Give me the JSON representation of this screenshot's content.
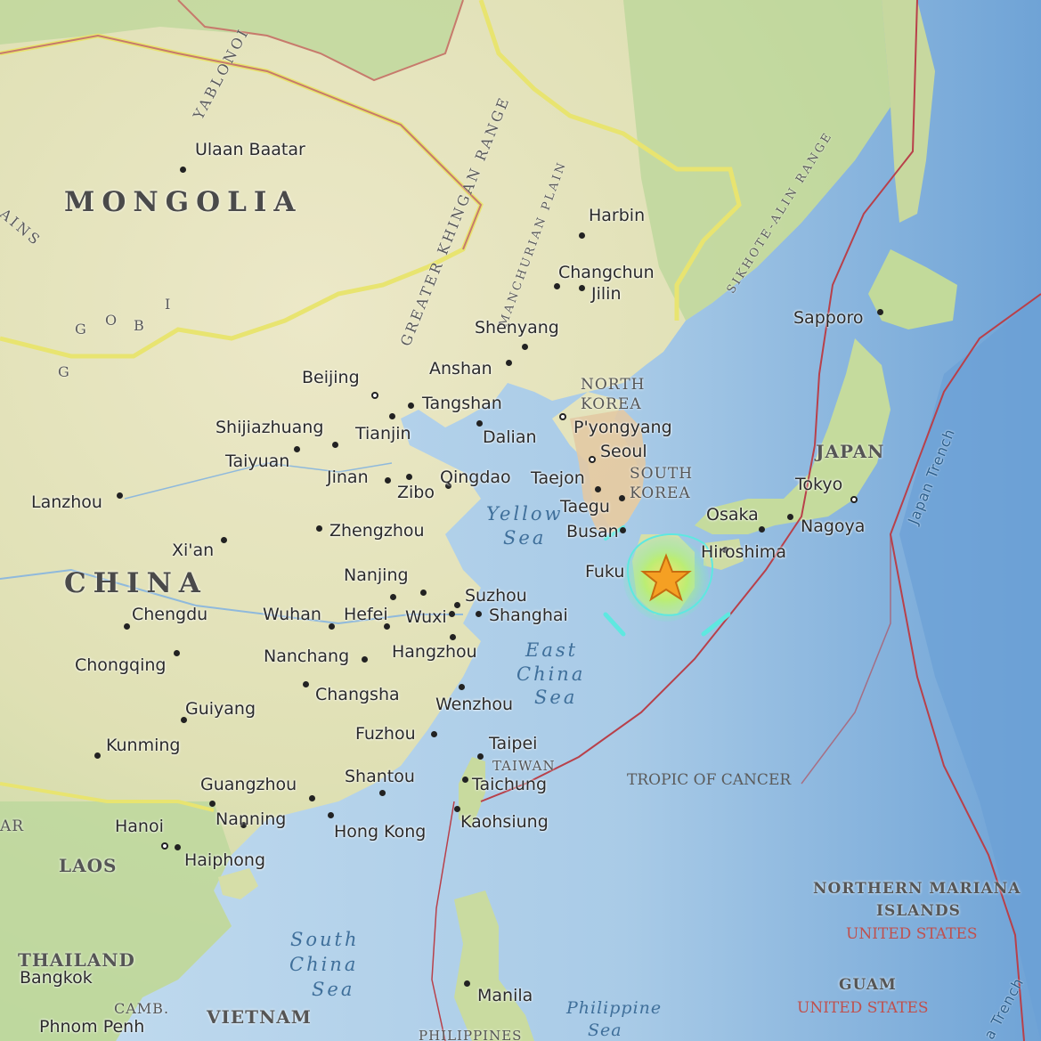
{
  "colors": {
    "ocean_shallow": "#bcd9ee",
    "ocean_deep": "#7fb0dc",
    "land": "#e8e6c2",
    "land_green": "#c9dca0",
    "border_yellow": "#e6e06a",
    "border_red": "#c77a6c",
    "plate_boundary": "#b8404a",
    "star": "#f5a023",
    "intensity_green": "#8ff08a",
    "intensity_cyan": "#5ee8e0"
  },
  "map": {
    "countries": {
      "mongolia": "MONGOLIA",
      "china": "CHINA",
      "north_korea_1": "NORTH",
      "north_korea_2": "KOREA",
      "south_korea_1": "SOUTH",
      "south_korea_2": "KOREA",
      "japan": "JAPAN",
      "taiwan": "TAIWAN",
      "laos": "LAOS",
      "thailand": "THAILAND",
      "cambodia": "CAMB.",
      "vietnam": "VIETNAM",
      "nmi_1": "NORTHERN MARIANA",
      "nmi_2": "ISLANDS",
      "nmi_us": "UNITED STATES",
      "guam": "GUAM",
      "guam_us": "UNITED STATES",
      "philippines": "PHILIPPINES",
      "myanmar": "AR"
    },
    "cities": {
      "ulaanbaatar": "Ulaan Baatar",
      "harbin": "Harbin",
      "changchun": "Changchun",
      "jilin": "Jilin",
      "shenyang": "Shenyang",
      "anshan": "Anshan",
      "beijing": "Beijing",
      "tangshan": "Tangshan",
      "shijiazhuang": "Shijiazhuang",
      "tianjin": "Tianjin",
      "dalian": "Dalian",
      "pyongyang": "P'yongyang",
      "taiyuan": "Taiyuan",
      "seoul": "Seoul",
      "jinan": "Jinan",
      "zibo": "Zibo",
      "qingdao": "Qingdao",
      "taejon": "Taejon",
      "taegu": "Taegu",
      "busan": "Busan",
      "lanzhou": "Lanzhou",
      "zhengzhou": "Zhengzhou",
      "xian": "Xi'an",
      "nanjing": "Nanjing",
      "suzhou": "Suzhou",
      "chengdu": "Chengdu",
      "wuhan": "Wuhan",
      "hefei": "Hefei",
      "wuxi": "Wuxi",
      "shanghai": "Shanghai",
      "chongqing": "Chongqing",
      "nanchang": "Nanchang",
      "hangzhou": "Hangzhou",
      "changsha": "Changsha",
      "guiyang": "Guiyang",
      "wenzhou": "Wenzhou",
      "kunming": "Kunming",
      "fuzhou": "Fuzhou",
      "taipei": "Taipei",
      "shantou": "Shantou",
      "guangzhou": "Guangzhou",
      "taichung": "Taichung",
      "hanoi": "Hanoi",
      "nanning": "Nanning",
      "hongkong": "Hong Kong",
      "kaohsiung": "Kaohsiung",
      "haiphong": "Haiphong",
      "bangkok": "Bangkok",
      "phnompenh": "Phnom Penh",
      "manila": "Manila",
      "sapporo": "Sapporo",
      "tokyo": "Tokyo",
      "osaka": "Osaka",
      "nagoya": "Nagoya",
      "hiroshima": "Hiroshima",
      "fukuoka": "Fuku"
    },
    "seas": {
      "yellow_1": "Yellow",
      "yellow_2": "Sea",
      "eastchina_1": "East",
      "eastchina_2": "China",
      "eastchina_3": "Sea",
      "southchina_1": "South",
      "southchina_2": "China",
      "southchina_3": "Sea",
      "philippine_1": "Philippine",
      "philippine_2": "Sea"
    },
    "features": {
      "yablonoi": "YABLONOI",
      "greater_khingan": "GREATER KHINGAN RANGE",
      "manchurian_plain": "MANCHURIAN PLAIN",
      "sikhote_alin": "SIKHOTE-ALIN RANGE",
      "gobi_1": "G",
      "gobi_2": "O",
      "gobi_3": "B",
      "gobi_4": "I",
      "gobi_5": "G",
      "ains": "AINS",
      "japan_trench": "Japan Trench",
      "mariana_trench": "a Trench",
      "tropic_of_cancer": "TROPIC OF CANCER"
    },
    "marker": {
      "icon": "star-icon"
    }
  }
}
